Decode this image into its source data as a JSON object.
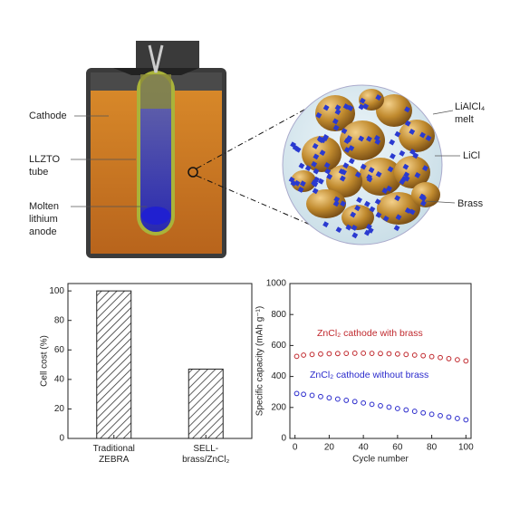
{
  "diagram": {
    "labels": [
      "Cathode",
      "LLZTO tube",
      "Molten lithium anode",
      "LiAlCl₄ melt",
      "LiCl",
      "Brass"
    ]
  },
  "chart_data": [
    {
      "type": "bar",
      "ylabel": "Cell cost (%)",
      "categories": [
        "Traditional ZEBRA",
        "SELL-brass/ZnCl₂"
      ],
      "values": [
        100,
        47
      ],
      "ylim": [
        0,
        105
      ],
      "yticks": [
        0,
        20,
        40,
        60,
        80,
        100
      ],
      "hatch": true
    },
    {
      "type": "line",
      "xlabel": "Cycle number",
      "ylabel": "Specific capacity (mAh g⁻¹)",
      "x": [
        1,
        5,
        10,
        15,
        20,
        25,
        30,
        35,
        40,
        45,
        50,
        55,
        60,
        65,
        70,
        75,
        80,
        85,
        90,
        95,
        100
      ],
      "series": [
        {
          "name": "ZnCl₂ cathode with brass",
          "color": "#c0282d",
          "values": [
            530,
            538,
            542,
            545,
            547,
            548,
            549,
            550,
            550,
            549,
            548,
            547,
            545,
            542,
            538,
            534,
            528,
            522,
            515,
            508,
            500
          ]
        },
        {
          "name": "ZnCl₂ cathode without brass",
          "color": "#2a2acc",
          "values": [
            290,
            285,
            278,
            270,
            262,
            254,
            246,
            238,
            229,
            220,
            211,
            202,
            193,
            184,
            175,
            165,
            156,
            147,
            138,
            129,
            120
          ]
        }
      ],
      "xlim": [
        -3,
        103
      ],
      "xticks": [
        0,
        20,
        40,
        60,
        80,
        100
      ],
      "ylim": [
        0,
        1000
      ],
      "yticks": [
        0,
        200,
        400,
        600,
        800,
        1000
      ]
    }
  ]
}
